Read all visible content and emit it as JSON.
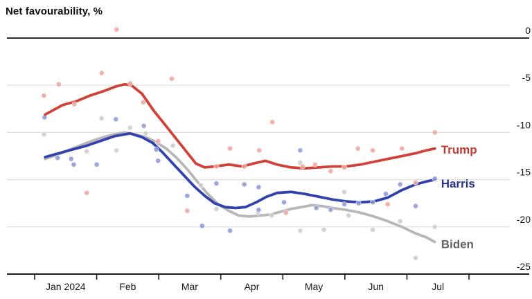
{
  "title": "Net favourability, %",
  "colors": {
    "background": "#ffffff",
    "grid": "#dedede",
    "zero_line": "#2d2d2d",
    "axis": "#1a1a1a",
    "tick_text": "#141414"
  },
  "x_axis": {
    "month_labels": [
      "Jan 2024",
      "Feb",
      "Mar",
      "Apr",
      "May",
      "Jun",
      "Jul"
    ],
    "month_boundaries": [
      0,
      1,
      2,
      3,
      4,
      5,
      6,
      7
    ]
  },
  "y_axis": {
    "ticks": [
      0,
      -5,
      -10,
      -15,
      -20,
      -25
    ],
    "tick_labels": [
      "0",
      "-5",
      "-10",
      "-15",
      "-20",
      "-25"
    ],
    "range": [
      -25,
      0
    ]
  },
  "chart_data": {
    "type": "line",
    "title": "Net favourability, %",
    "x_unit": "decimal months since 1 Jan 2024",
    "ylabel": "Net favourability, %",
    "ylim": [
      -25,
      0
    ],
    "grid": "horizontal",
    "legend_position": "end-of-line labels",
    "series": [
      {
        "name": "Biden",
        "line_color": "#b7b7b9",
        "dot_color": "#cbcbcd",
        "label_color": "#636363",
        "label_at": [
          6.55,
          -21.8
        ],
        "line": [
          [
            0.17,
            -12.8
          ],
          [
            0.39,
            -12.3
          ],
          [
            0.61,
            -11.7
          ],
          [
            0.84,
            -11.1
          ],
          [
            1.06,
            -10.6
          ],
          [
            1.28,
            -10.2
          ],
          [
            1.45,
            -10.0
          ],
          [
            1.62,
            -10.2
          ],
          [
            1.79,
            -10.5
          ],
          [
            1.95,
            -11.0
          ],
          [
            2.12,
            -11.7
          ],
          [
            2.29,
            -12.7
          ],
          [
            2.46,
            -13.9
          ],
          [
            2.62,
            -15.2
          ],
          [
            2.79,
            -16.5
          ],
          [
            2.96,
            -17.6
          ],
          [
            3.13,
            -18.3
          ],
          [
            3.29,
            -18.8
          ],
          [
            3.46,
            -18.9
          ],
          [
            3.63,
            -18.8
          ],
          [
            3.8,
            -18.7
          ],
          [
            3.96,
            -18.4
          ],
          [
            4.13,
            -18.1
          ],
          [
            4.3,
            -17.9
          ],
          [
            4.47,
            -17.7
          ],
          [
            4.63,
            -17.8
          ],
          [
            4.8,
            -18.0
          ],
          [
            5.02,
            -18.2
          ],
          [
            5.25,
            -18.5
          ],
          [
            5.47,
            -18.9
          ],
          [
            5.69,
            -19.4
          ],
          [
            5.92,
            -20.0
          ],
          [
            6.14,
            -20.7
          ],
          [
            6.31,
            -21.1
          ],
          [
            6.45,
            -21.6
          ]
        ],
        "scatter": [
          [
            0.15,
            -10.2
          ],
          [
            0.84,
            -12.0
          ],
          [
            1.08,
            -8.5
          ],
          [
            1.32,
            -11.9
          ],
          [
            1.54,
            -9.5
          ],
          [
            1.79,
            -10.1
          ],
          [
            2.23,
            -11.4
          ],
          [
            2.68,
            -15.6
          ],
          [
            2.93,
            -18.1
          ],
          [
            3.6,
            -18.5
          ],
          [
            3.82,
            -18.8
          ],
          [
            4.28,
            -13.2
          ],
          [
            4.28,
            -20.4
          ],
          [
            4.66,
            -20.3
          ],
          [
            4.99,
            -16.3
          ],
          [
            5.06,
            -18.8
          ],
          [
            5.45,
            -20.3
          ],
          [
            5.89,
            -19.4
          ],
          [
            6.14,
            -23.3
          ],
          [
            6.45,
            -20.0
          ]
        ]
      },
      {
        "name": "Harris",
        "line_color": "#3142ae",
        "dot_color": "#8c96d3",
        "label_color": "#27358f",
        "label_at": [
          6.55,
          -15.4
        ],
        "line": [
          [
            0.17,
            -12.6
          ],
          [
            0.39,
            -12.2
          ],
          [
            0.61,
            -11.8
          ],
          [
            0.84,
            -11.4
          ],
          [
            1.06,
            -10.9
          ],
          [
            1.28,
            -10.4
          ],
          [
            1.54,
            -10.1
          ],
          [
            1.73,
            -10.5
          ],
          [
            1.9,
            -11.1
          ],
          [
            2.06,
            -12.1
          ],
          [
            2.23,
            -13.3
          ],
          [
            2.4,
            -14.5
          ],
          [
            2.57,
            -15.7
          ],
          [
            2.74,
            -16.7
          ],
          [
            2.9,
            -17.5
          ],
          [
            3.07,
            -17.9
          ],
          [
            3.24,
            -18.0
          ],
          [
            3.4,
            -17.9
          ],
          [
            3.57,
            -17.4
          ],
          [
            3.74,
            -16.8
          ],
          [
            3.91,
            -16.4
          ],
          [
            4.13,
            -16.3
          ],
          [
            4.35,
            -16.5
          ],
          [
            4.58,
            -16.8
          ],
          [
            4.8,
            -17.1
          ],
          [
            5.02,
            -17.3
          ],
          [
            5.25,
            -17.4
          ],
          [
            5.47,
            -17.3
          ],
          [
            5.69,
            -16.9
          ],
          [
            5.92,
            -16.1
          ],
          [
            6.14,
            -15.5
          ],
          [
            6.31,
            -15.2
          ],
          [
            6.45,
            -15.0
          ]
        ],
        "scatter": [
          [
            0.16,
            -8.4
          ],
          [
            0.37,
            -12.7
          ],
          [
            0.59,
            -12.8
          ],
          [
            0.63,
            -13.4
          ],
          [
            1.0,
            -13.4
          ],
          [
            1.31,
            -8.6
          ],
          [
            1.76,
            -9.3
          ],
          [
            1.96,
            -11.8
          ],
          [
            1.99,
            -13.0
          ],
          [
            2.46,
            -16.7
          ],
          [
            2.7,
            -19.9
          ],
          [
            2.93,
            -15.4
          ],
          [
            3.15,
            -20.4
          ],
          [
            3.38,
            -15.5
          ],
          [
            3.61,
            -15.8
          ],
          [
            3.61,
            -18.2
          ],
          [
            4.02,
            -17.4
          ],
          [
            4.28,
            -11.9
          ],
          [
            4.54,
            -18.0
          ],
          [
            4.77,
            -18.2
          ],
          [
            4.99,
            -17.6
          ],
          [
            5.22,
            -17.5
          ],
          [
            5.45,
            -17.4
          ],
          [
            5.66,
            -16.5
          ],
          [
            5.89,
            -15.5
          ],
          [
            6.14,
            -17.8
          ],
          [
            6.45,
            -14.9
          ]
        ]
      },
      {
        "name": "Trump",
        "line_color": "#d04238",
        "dot_color": "#f0a29c",
        "label_color": "#c23a30",
        "label_at": [
          6.55,
          -11.8
        ],
        "line": [
          [
            0.17,
            -8.1
          ],
          [
            0.45,
            -7.1
          ],
          [
            0.67,
            -6.7
          ],
          [
            0.89,
            -6.1
          ],
          [
            1.12,
            -5.6
          ],
          [
            1.32,
            -5.1
          ],
          [
            1.45,
            -4.9
          ],
          [
            1.56,
            -5.0
          ],
          [
            1.73,
            -5.9
          ],
          [
            1.92,
            -7.7
          ],
          [
            2.14,
            -9.5
          ],
          [
            2.37,
            -11.4
          ],
          [
            2.6,
            -13.3
          ],
          [
            2.74,
            -13.7
          ],
          [
            2.9,
            -13.6
          ],
          [
            3.13,
            -13.4
          ],
          [
            3.35,
            -13.6
          ],
          [
            3.52,
            -13.3
          ],
          [
            3.72,
            -13.0
          ],
          [
            3.91,
            -13.4
          ],
          [
            4.13,
            -13.7
          ],
          [
            4.35,
            -13.8
          ],
          [
            4.58,
            -13.7
          ],
          [
            4.8,
            -13.6
          ],
          [
            5.02,
            -13.6
          ],
          [
            5.25,
            -13.4
          ],
          [
            5.47,
            -13.1
          ],
          [
            5.69,
            -12.8
          ],
          [
            5.92,
            -12.5
          ],
          [
            6.14,
            -12.2
          ],
          [
            6.31,
            -11.9
          ],
          [
            6.45,
            -11.7
          ]
        ],
        "scatter": [
          [
            0.15,
            -6.1
          ],
          [
            0.39,
            -4.9
          ],
          [
            0.64,
            -7.0
          ],
          [
            0.84,
            -16.4
          ],
          [
            1.08,
            -3.7
          ],
          [
            1.32,
            0.9
          ],
          [
            1.54,
            -4.8
          ],
          [
            1.75,
            -6.8
          ],
          [
            1.99,
            -10.9
          ],
          [
            2.21,
            -4.3
          ],
          [
            2.46,
            -18.3
          ],
          [
            2.93,
            -13.6
          ],
          [
            3.15,
            -11.7
          ],
          [
            3.38,
            -13.6
          ],
          [
            3.62,
            -11.9
          ],
          [
            3.83,
            -8.9
          ],
          [
            4.05,
            -18.5
          ],
          [
            4.32,
            -13.6
          ],
          [
            4.52,
            -13.4
          ],
          [
            4.77,
            -14.1
          ],
          [
            4.99,
            -13.7
          ],
          [
            5.21,
            -11.7
          ],
          [
            5.45,
            -11.9
          ],
          [
            5.69,
            -17.6
          ],
          [
            5.92,
            -11.7
          ],
          [
            6.14,
            -15.3
          ],
          [
            6.45,
            -10.0
          ]
        ]
      }
    ]
  }
}
